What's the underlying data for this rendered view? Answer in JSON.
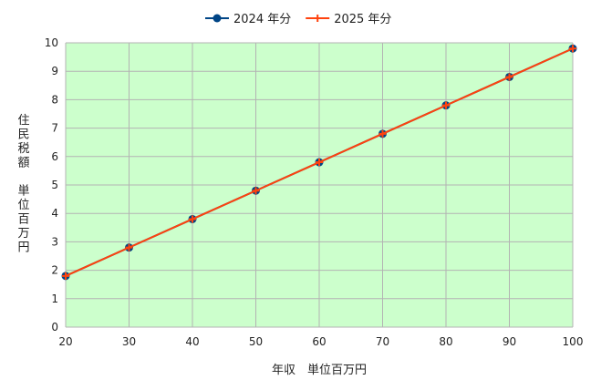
{
  "chart_data": {
    "type": "line",
    "title": "",
    "xlabel": "年収　単位百万円",
    "ylabel_lines": [
      "住",
      "民",
      "税",
      "額",
      "",
      "単",
      "位",
      "百",
      "万",
      "円"
    ],
    "x": [
      20,
      30,
      40,
      50,
      60,
      70,
      80,
      90,
      100
    ],
    "xlim": [
      20,
      100
    ],
    "ylim": [
      0,
      10
    ],
    "xticks": [
      20,
      30,
      40,
      50,
      60,
      70,
      80,
      90,
      100
    ],
    "yticks": [
      0,
      1,
      2,
      3,
      4,
      5,
      6,
      7,
      8,
      9,
      10
    ],
    "grid": true,
    "legend_position": "top-center",
    "plot_background": "#ccffcc",
    "grid_color": "#b3b3b3",
    "series": [
      {
        "name": "2024 年分",
        "color": "#004586",
        "marker": "circle",
        "values": [
          1.8,
          2.8,
          3.8,
          4.8,
          5.8,
          6.8,
          7.8,
          8.8,
          9.8
        ]
      },
      {
        "name": "2025 年分",
        "color": "#ff420e",
        "marker": "plus",
        "values": [
          1.8,
          2.8,
          3.8,
          4.8,
          5.8,
          6.8,
          7.8,
          8.8,
          9.8
        ]
      }
    ]
  }
}
